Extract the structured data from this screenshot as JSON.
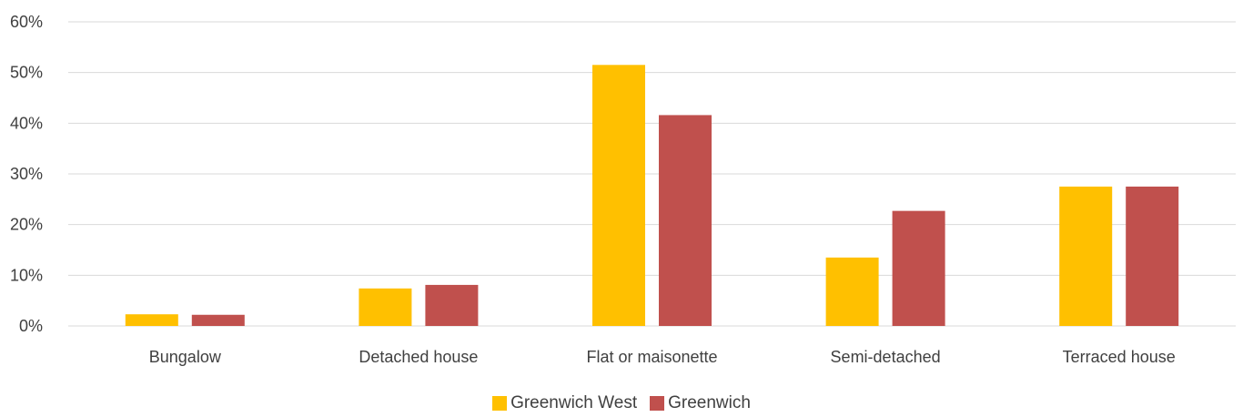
{
  "chart_data": {
    "type": "bar",
    "categories": [
      "Bungalow",
      "Detached house",
      "Flat or maisonette",
      "Semi-detached",
      "Terraced house"
    ],
    "series": [
      {
        "name": "Greenwich West",
        "color": "#FFC000",
        "values": [
          2.3,
          7.4,
          51.5,
          13.5,
          27.5
        ]
      },
      {
        "name": "Greenwich",
        "color": "#C0504D",
        "values": [
          2.2,
          8.1,
          41.6,
          22.7,
          27.5
        ]
      }
    ],
    "y_ticks": [
      "0%",
      "10%",
      "20%",
      "30%",
      "40%",
      "50%",
      "60%"
    ],
    "ylim": [
      0,
      60
    ],
    "grid": true,
    "legend_position": "bottom"
  }
}
